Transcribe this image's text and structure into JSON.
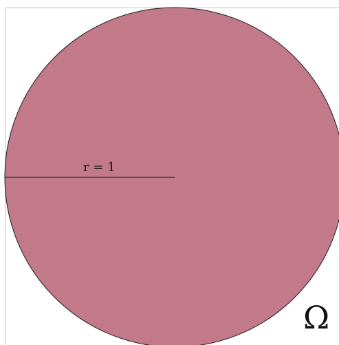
{
  "diagram": {
    "radius_label": "r = 1",
    "domain_label": "Ω"
  },
  "colors": {
    "disk_fill": "#c27a8b",
    "disk_stroke": "#1a1a1a",
    "radius_line": "#2a2a2a",
    "frame_border": "#bdbdbd",
    "background": "#ffffff"
  }
}
